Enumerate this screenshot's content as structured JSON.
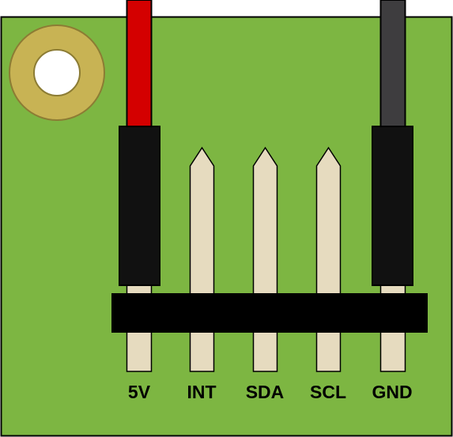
{
  "colors": {
    "board": "#7db642",
    "board_edge": "#5d8a30",
    "pad": "#c8b354",
    "pad_edge": "#8c7c34",
    "hole": "#ffffff",
    "pin": "#e6dbbf",
    "header": "#000000",
    "wire_5v": "#d40000",
    "wire_gnd": "#3e3d3f",
    "connector": "#111111",
    "label": "#000000"
  },
  "pins": [
    {
      "id": "5v",
      "label": "5V",
      "connected": true,
      "wire_color": "#d40000"
    },
    {
      "id": "int",
      "label": "INT",
      "connected": false
    },
    {
      "id": "sda",
      "label": "SDA",
      "connected": false
    },
    {
      "id": "scl",
      "label": "SCL",
      "connected": false
    },
    {
      "id": "gnd",
      "label": "GND",
      "connected": true,
      "wire_color": "#3e3d3f"
    }
  ]
}
